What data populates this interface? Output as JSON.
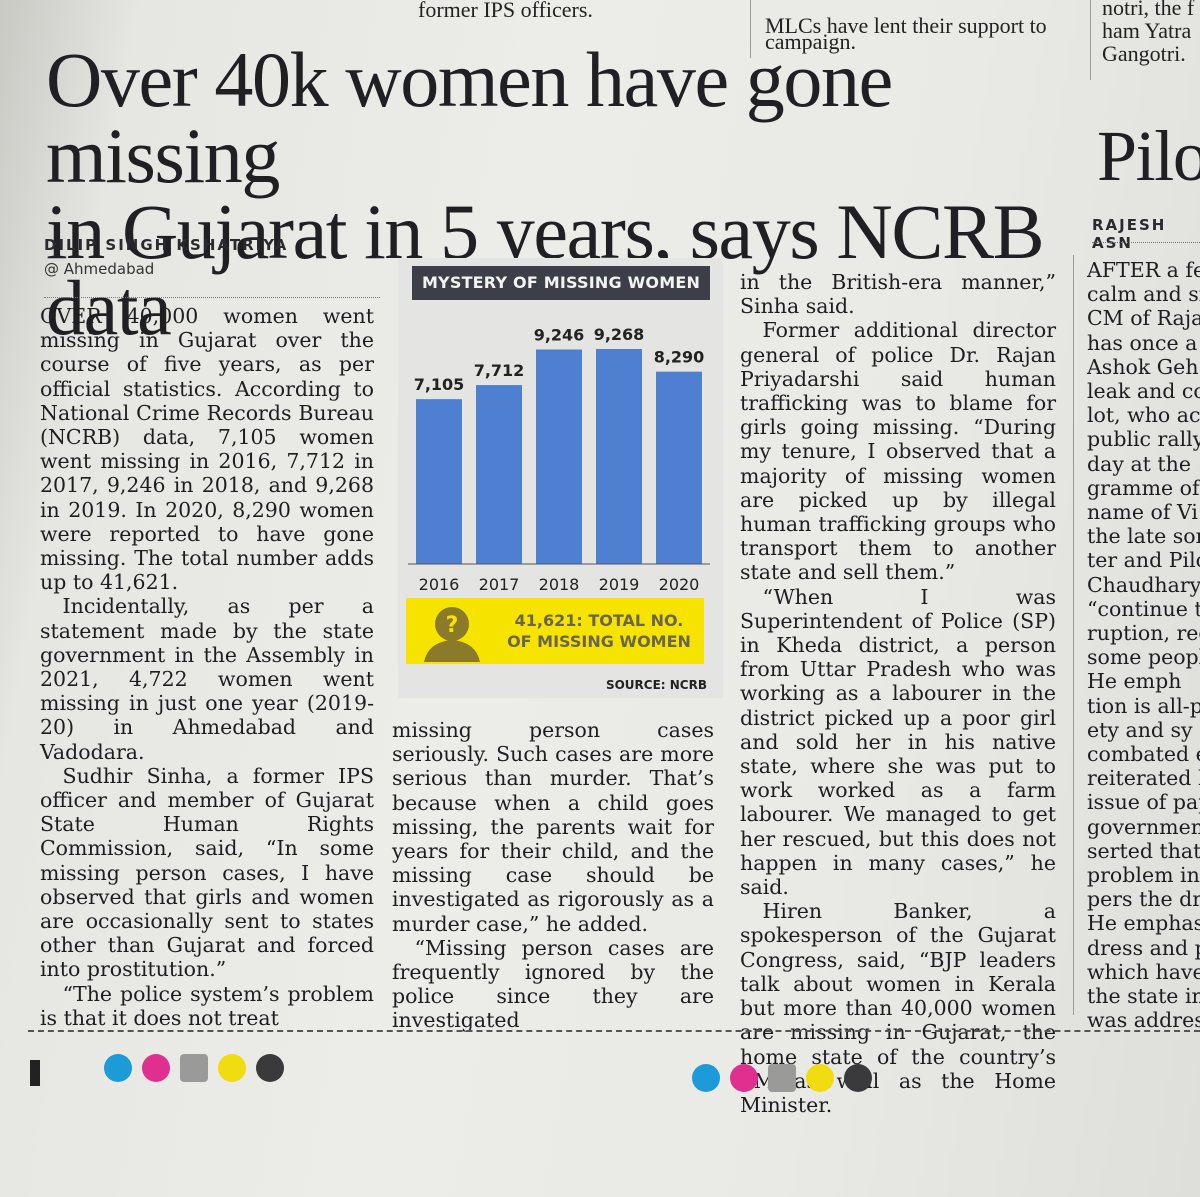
{
  "top_fragments": {
    "col2": "former IPS officers.",
    "col3_line1": "MLCs have lent their support to",
    "col3_line2": "campaign.",
    "col4_line1": "notri, the f",
    "col4_line2": "ham Yatra",
    "col4_line3": "Gangotri."
  },
  "headline": {
    "line1": "Over 40k women have gone missing",
    "line2": "in Gujarat in 5 years, says NCRB data"
  },
  "side_headline": "Pilo",
  "byline": {
    "name": "DILIP SINGH KSHATRIYA",
    "location": "@ Ahmedabad"
  },
  "side_byline": "RAJESH ASN",
  "chart_data": {
    "type": "bar",
    "title": "MYSTERY OF MISSING WOMEN",
    "categories": [
      "2016",
      "2017",
      "2018",
      "2019",
      "2020"
    ],
    "values": [
      7105,
      7712,
      9246,
      9268,
      8290
    ],
    "data_labels": [
      "7,105",
      "7,712",
      "9,246",
      "9,268",
      "8,290"
    ],
    "ylim": [
      0,
      10000
    ],
    "bar_color": "#4f7fd0",
    "grid": false,
    "legend": "none",
    "total_line1": "41,621: TOTAL NO.",
    "total_line2": "OF MISSING WOMEN",
    "total_color": "#f6e400",
    "source": "SOURCE: NCRB"
  },
  "columns": {
    "col1": [
      "OVER 40,000 women went missing in Gujarat over the course of five years, as per official statistics. According to National Crime Records Bureau (NCRB) data, 7,105 women went missing in 2016, 7,712 in 2017, 9,246 in 2018, and 9,268 in 2019. In 2020, 8,290 women were reported to have gone missing. The total number adds up to 41,621.",
      "Incidentally, as per a statement made by the state government in the Assembly in 2021, 4,722 women went missing in just one year (2019-20) in Ahmedabad and Vadodara.",
      "Sudhir Sinha, a former IPS officer and member of Gujarat State Human Rights Commission, said, “In some missing person cases, I have observed that girls and women are occasionally sent to states other than Gujarat and forced into prostitution.”",
      "“The police system’s problem is that it does not treat"
    ],
    "col2": [
      "missing person cases seriously. Such cases are more serious than murder. That’s because when a child goes missing, the parents wait for years for their child, and the missing case should be investigated as rigorously as a murder case,” he added.",
      "“Missing person cases are frequently ignored by the police since they are investigated"
    ],
    "col3": [
      "in the British-era manner,” Sinha said.",
      "Former additional director general of police Dr. Rajan Priyadarshi said human trafficking was to blame for girls going missing. “During my tenure, I observed that a majority of missing women are picked up by illegal human trafficking groups who transport them to another state and sell them.”",
      "“When I was Superintendent of Police (SP) in Kheda district, a person from Uttar Pradesh who was working as a labourer in the district picked up a poor girl and sold her in his native state, where she was put to work worked as a farm labourer. We managed to get her rescued, but this does not happen in many cases,” he said.",
      "Hiren Banker, a spokesperson of the Gujarat Congress, said, “BJP leaders talk about women in Kerala but more than 40,000 women are missing in Gujarat, the home state of the country’s PM as well as the Home Minister."
    ],
    "col4": [
      "AFTER a fe",
      "calm and si",
      "CM of Raja",
      "has once a",
      "Ashok Geh",
      "leak and co",
      "lot, who ac",
      "public rally",
      "day at the",
      "gramme of",
      "name of Vi",
      "the late son",
      "ter and Pilo",
      "Chaudhary",
      "“continue t",
      "ruption, reg",
      "some people",
      "He emph",
      "tion is all-p",
      "ety and sy",
      "combated e",
      "reiterated h",
      "issue of pap",
      "government",
      "serted that",
      "problem in",
      "pers the dr",
      "He emphas",
      "dress and p",
      "which have",
      "the state in",
      "was addres"
    ]
  },
  "registration_marks": {
    "colors": [
      "#1d9bd8",
      "#df2f8f",
      "#9a9a98",
      "#f0dc10",
      "#3a3a3c"
    ]
  }
}
